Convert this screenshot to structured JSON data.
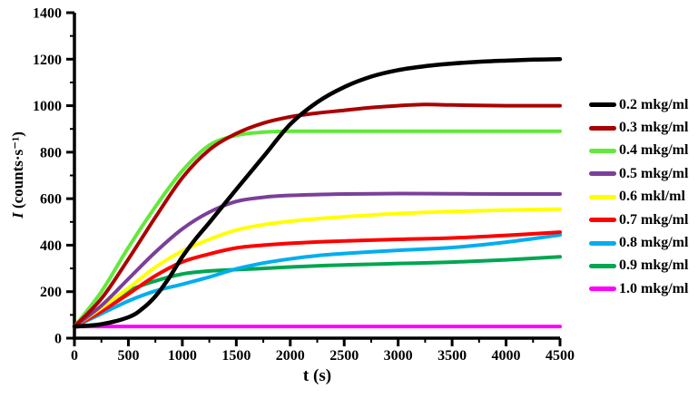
{
  "chart_data": {
    "type": "line",
    "title": "",
    "xlabel": "t (s)",
    "ylabel": "I (counts·s⁻¹)",
    "ylabel_italic": "I",
    "ylabel_rest": " (counts·s⁻¹)",
    "xlim": [
      0,
      4500
    ],
    "ylim": [
      0,
      1400
    ],
    "x_major_ticks": [
      0,
      500,
      1000,
      1500,
      2000,
      2500,
      3000,
      3500,
      4000,
      4500
    ],
    "x_minor_step": 250,
    "y_major_ticks": [
      0,
      200,
      400,
      600,
      800,
      1000,
      1200,
      1400
    ],
    "y_minor_step": 100,
    "grid": false,
    "legend_position": "right-outside",
    "axis_color": "#000000",
    "tick_label_color": "#000000",
    "series": [
      {
        "name": "0.2 mkg/ml",
        "color": "#000000",
        "x": [
          0,
          250,
          500,
          625,
          750,
          875,
          1000,
          1125,
          1250,
          1500,
          1750,
          2000,
          2250,
          2500,
          2750,
          3000,
          3250,
          3500,
          3750,
          4000,
          4250,
          4500
        ],
        "y": [
          50,
          60,
          90,
          125,
          180,
          258,
          350,
          428,
          497,
          640,
          780,
          920,
          1015,
          1080,
          1125,
          1153,
          1170,
          1181,
          1189,
          1194,
          1198,
          1200
        ]
      },
      {
        "name": "0.3 mkg/ml",
        "color": "#AA0000",
        "x": [
          0,
          250,
          500,
          750,
          1000,
          1250,
          1500,
          1750,
          2000,
          2250,
          2500,
          2750,
          3000,
          3250,
          3500,
          4000,
          4500
        ],
        "y": [
          50,
          170,
          340,
          520,
          690,
          810,
          880,
          925,
          952,
          968,
          980,
          992,
          1000,
          1005,
          1003,
          1000,
          1000
        ]
      },
      {
        "name": "0.4 mkg/ml",
        "color": "#63E83C",
        "x": [
          0,
          250,
          500,
          750,
          1000,
          1250,
          1500,
          1750,
          2000,
          2500,
          3000,
          3500,
          4000,
          4500
        ],
        "y": [
          50,
          200,
          390,
          565,
          720,
          830,
          872,
          886,
          890,
          890,
          890,
          890,
          890,
          890
        ]
      },
      {
        "name": "0.5 mkg/ml",
        "color": "#7B3F99",
        "x": [
          0,
          250,
          500,
          750,
          1000,
          1250,
          1500,
          1750,
          2000,
          2500,
          3000,
          3500,
          4000,
          4500
        ],
        "y": [
          50,
          140,
          255,
          370,
          470,
          542,
          588,
          606,
          614,
          620,
          622,
          621,
          620,
          620
        ]
      },
      {
        "name": "0.6 mkl/ml",
        "color": "#FFFF00",
        "x": [
          0,
          250,
          500,
          750,
          1000,
          1250,
          1500,
          1750,
          2000,
          2250,
          2500,
          3000,
          3500,
          4000,
          4500
        ],
        "y": [
          50,
          130,
          215,
          305,
          375,
          425,
          465,
          488,
          503,
          514,
          522,
          536,
          545,
          551,
          555
        ]
      },
      {
        "name": "0.7 mkg/ml",
        "color": "#FF0000",
        "x": [
          0,
          250,
          500,
          750,
          1000,
          1250,
          1500,
          1750,
          2000,
          2250,
          2500,
          3000,
          3500,
          4000,
          4500
        ],
        "y": [
          50,
          115,
          190,
          268,
          328,
          362,
          388,
          400,
          408,
          414,
          418,
          425,
          431,
          442,
          456
        ]
      },
      {
        "name": "0.8 mkg/ml",
        "color": "#00AEEF",
        "x": [
          0,
          250,
          500,
          750,
          1000,
          1250,
          1500,
          1750,
          2000,
          2250,
          2500,
          3000,
          3500,
          4000,
          4500
        ],
        "y": [
          50,
          105,
          160,
          203,
          232,
          263,
          298,
          323,
          341,
          355,
          364,
          378,
          390,
          413,
          444
        ]
      },
      {
        "name": "0.9 mkg/ml",
        "color": "#00A651",
        "x": [
          0,
          250,
          500,
          750,
          1000,
          1250,
          1500,
          1750,
          2000,
          2250,
          2500,
          3000,
          3500,
          4000,
          4500
        ],
        "y": [
          50,
          128,
          203,
          246,
          276,
          289,
          295,
          300,
          306,
          311,
          315,
          321,
          327,
          337,
          350
        ]
      },
      {
        "name": "1.0 mkg/ml",
        "color": "#FF00FF",
        "x": [
          0,
          500,
          1000,
          1500,
          2000,
          2500,
          3000,
          3500,
          4000,
          4500
        ],
        "y": [
          50,
          50,
          50,
          50,
          50,
          50,
          50,
          50,
          50,
          50
        ]
      }
    ]
  }
}
